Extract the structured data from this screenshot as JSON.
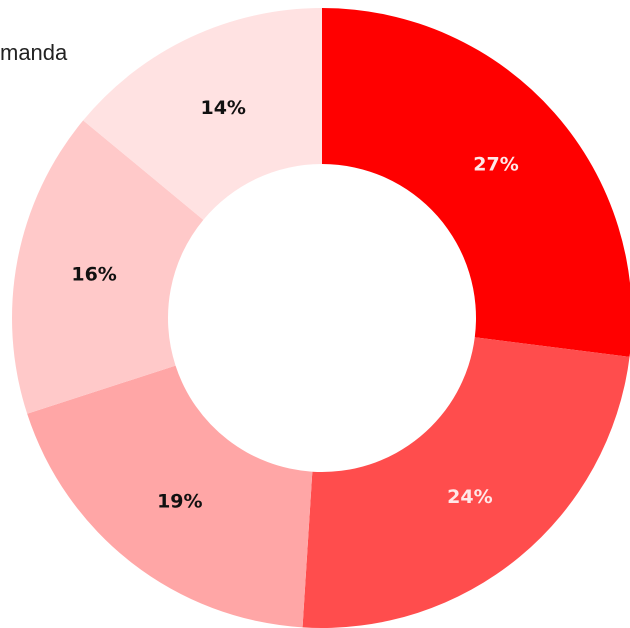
{
  "chart_data": {
    "type": "pie",
    "donut": true,
    "legend_fragment": "manda",
    "slices": [
      {
        "label": "27%",
        "value": 27,
        "color": "#ff0000",
        "label_color": "#ffe8e8"
      },
      {
        "label": "24%",
        "value": 24,
        "color": "#ff4d4d",
        "label_color": "#ffe8e8"
      },
      {
        "label": "19%",
        "value": 19,
        "color": "#ffa6a6",
        "label_color": "#111111"
      },
      {
        "label": "16%",
        "value": 16,
        "color": "#ffc9c9",
        "label_color": "#111111"
      },
      {
        "label": "14%",
        "value": 14,
        "color": "#ffe2e2",
        "label_color": "#111111"
      }
    ]
  }
}
